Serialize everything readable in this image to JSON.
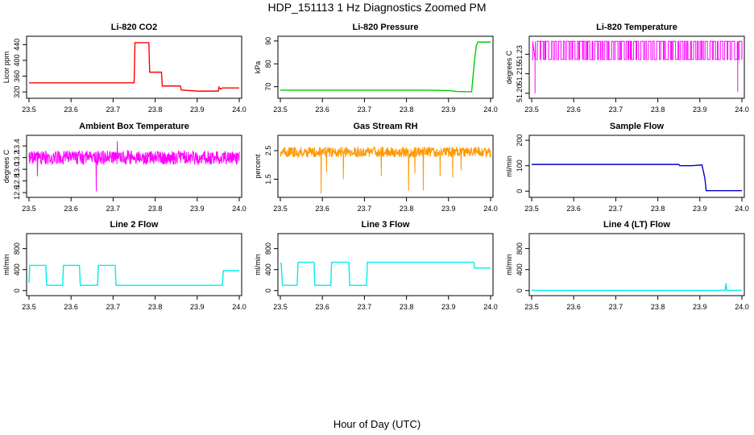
{
  "figure": {
    "title": "HDP_151113  1 Hz Diagnostics Zoomed PM",
    "xlabel": "Hour of Day (UTC)"
  },
  "chart_data": [
    {
      "id": "co2",
      "type": "line",
      "title": "Li-820 CO2",
      "ylabel": "Licor ppm",
      "color": "#ff0000",
      "xlim": [
        23.5,
        24.0
      ],
      "ylim": [
        310,
        455
      ],
      "xticks": [
        "23.5",
        "23.6",
        "23.7",
        "23.8",
        "23.9",
        "24.0"
      ],
      "yticks": [
        {
          "v": 320,
          "label": "320"
        },
        {
          "v": 360,
          "label": "360"
        },
        {
          "v": 400,
          "label": "400"
        },
        {
          "v": 440,
          "label": "440"
        }
      ],
      "series": [
        {
          "name": "CO2",
          "x": [
            23.5,
            23.75,
            23.752,
            23.785,
            23.787,
            23.815,
            23.817,
            23.86,
            23.862,
            23.9,
            23.95,
            23.952,
            23.955,
            23.96,
            23.962,
            24.0
          ],
          "y": [
            343,
            343,
            445,
            445,
            370,
            370,
            335,
            335,
            325,
            322,
            322,
            332,
            327,
            330,
            330,
            330
          ]
        }
      ]
    },
    {
      "id": "pressure",
      "type": "line",
      "title": "Li-820 Pressure",
      "ylabel": "kPa",
      "color": "#00cc00",
      "xlim": [
        23.5,
        24.0
      ],
      "ylim": [
        66,
        91
      ],
      "xticks": [
        "23.5",
        "23.6",
        "23.7",
        "23.8",
        "23.9",
        "24.0"
      ],
      "yticks": [
        {
          "v": 70,
          "label": "70"
        },
        {
          "v": 80,
          "label": "80"
        },
        {
          "v": 90,
          "label": "90"
        }
      ],
      "series": [
        {
          "name": "Pressure",
          "x": [
            23.5,
            23.85,
            23.9,
            23.92,
            23.955,
            23.958,
            23.962,
            23.966,
            23.97,
            23.972,
            24.0
          ],
          "y": [
            68.5,
            68.5,
            68.3,
            67.9,
            67.8,
            74,
            82,
            88,
            89.5,
            89.5,
            89.5
          ]
        }
      ]
    },
    {
      "id": "licor_temp",
      "type": "line",
      "title": "Li-820 Temperature",
      "ylabel": "degrees C",
      "color": "#ff00ff",
      "xlim": [
        23.5,
        24.0
      ],
      "ylim": [
        51.198,
        51.242
      ],
      "xticks": [
        "23.5",
        "23.6",
        "23.7",
        "23.8",
        "23.9",
        "24.0"
      ],
      "yticks": [
        {
          "v": 51.2,
          "label": "51.20"
        },
        {
          "v": 51.215,
          "label": "51.215"
        },
        {
          "v": 51.23,
          "label": "51.23"
        }
      ],
      "series": [
        {
          "name": "Temperature",
          "pattern": "toggle",
          "low": 51.226,
          "high": 51.24,
          "spikes": [
            {
              "x": 23.508,
              "y": 51.2
            },
            {
              "x": 23.99,
              "y": 51.201
            }
          ]
        }
      ]
    },
    {
      "id": "box_temp",
      "type": "line",
      "title": "Ambient Box Temperature",
      "ylabel": "degrees C",
      "color": "#ff00ff",
      "xlim": [
        23.5,
        24.0
      ],
      "ylim": [
        12.56,
        13.54
      ],
      "xticks": [
        "23.5",
        "23.6",
        "23.7",
        "23.8",
        "23.9",
        "24.0"
      ],
      "yticks": [
        {
          "v": 12.6,
          "label": "12.6"
        },
        {
          "v": 12.8,
          "label": "12.8"
        },
        {
          "v": 13.0,
          "label": "13.0"
        },
        {
          "v": 13.2,
          "label": "13.2"
        },
        {
          "v": 13.4,
          "label": "13.4"
        }
      ],
      "series": [
        {
          "name": "Box Temperature",
          "pattern": "noise",
          "mean": 13.2,
          "amp": 0.12,
          "spikes": [
            {
              "x": 23.66,
              "y": 12.62
            },
            {
              "x": 23.71,
              "y": 13.48
            },
            {
              "x": 23.52,
              "y": 12.88
            }
          ]
        }
      ]
    },
    {
      "id": "rh",
      "type": "line",
      "title": "Gas Stream RH",
      "ylabel": "percent",
      "color": "#ff9900",
      "xlim": [
        23.5,
        24.0
      ],
      "ylim": [
        0.95,
        2.95
      ],
      "xticks": [
        "23.5",
        "23.6",
        "23.7",
        "23.8",
        "23.9",
        "24.0"
      ],
      "yticks": [
        {
          "v": 1.5,
          "label": "1.5"
        },
        {
          "v": 2.5,
          "label": "2.5"
        }
      ],
      "series": [
        {
          "name": "RH",
          "pattern": "noise",
          "mean": 2.45,
          "amp": 0.18,
          "spikes": [
            {
              "x": 23.597,
              "y": 1.0
            },
            {
              "x": 23.61,
              "y": 1.75
            },
            {
              "x": 23.65,
              "y": 1.5
            },
            {
              "x": 23.74,
              "y": 1.6
            },
            {
              "x": 23.805,
              "y": 1.1
            },
            {
              "x": 23.82,
              "y": 1.7
            },
            {
              "x": 23.84,
              "y": 1.1
            },
            {
              "x": 23.88,
              "y": 1.6
            },
            {
              "x": 23.91,
              "y": 1.55
            },
            {
              "x": 23.93,
              "y": 1.8
            }
          ]
        }
      ]
    },
    {
      "id": "sample_flow",
      "type": "line",
      "title": "Sample Flow",
      "ylabel": "ml/min",
      "color": "#0000cc",
      "xlim": [
        23.5,
        24.0
      ],
      "ylim": [
        -15,
        210
      ],
      "xticks": [
        "23.5",
        "23.6",
        "23.7",
        "23.8",
        "23.9",
        "24.0"
      ],
      "yticks": [
        {
          "v": 0,
          "label": "0"
        },
        {
          "v": 100,
          "label": "100"
        },
        {
          "v": 200,
          "label": "200"
        }
      ],
      "series": [
        {
          "name": "Sample Flow",
          "x": [
            23.5,
            23.85,
            23.852,
            23.88,
            23.905,
            23.912,
            23.915,
            24.0
          ],
          "y": [
            105,
            105,
            100,
            100,
            103,
            50,
            2,
            2
          ]
        }
      ]
    },
    {
      "id": "line2",
      "type": "line",
      "title": "Line 2 Flow",
      "ylabel": "ml/min",
      "color": "#00eeee",
      "xlim": [
        23.5,
        24.0
      ],
      "ylim": [
        -50,
        1040
      ],
      "xticks": [
        "23.5",
        "23.6",
        "23.7",
        "23.8",
        "23.9",
        "24.0"
      ],
      "yticks": [
        {
          "v": 0,
          "label": "0"
        },
        {
          "v": 400,
          "label": "400"
        },
        {
          "v": 800,
          "label": "800"
        }
      ],
      "series": [
        {
          "name": "Line 2",
          "x": [
            23.5,
            23.502,
            23.54,
            23.542,
            23.58,
            23.582,
            23.62,
            23.622,
            23.663,
            23.665,
            23.705,
            23.707,
            23.96,
            23.962,
            24.0
          ],
          "y": [
            150,
            480,
            480,
            100,
            100,
            480,
            480,
            100,
            100,
            480,
            480,
            100,
            100,
            380,
            380
          ]
        }
      ]
    },
    {
      "id": "line3",
      "type": "line",
      "title": "Line 3 Flow",
      "ylabel": "ml/min",
      "color": "#00eeee",
      "xlim": [
        23.5,
        24.0
      ],
      "ylim": [
        -50,
        1040
      ],
      "xticks": [
        "23.5",
        "23.6",
        "23.7",
        "23.8",
        "23.9",
        "24.0"
      ],
      "yticks": [
        {
          "v": 0,
          "label": "0"
        },
        {
          "v": 400,
          "label": "400"
        },
        {
          "v": 800,
          "label": "800"
        }
      ],
      "series": [
        {
          "name": "Line 3",
          "x": [
            23.5,
            23.502,
            23.505,
            23.54,
            23.542,
            23.58,
            23.582,
            23.62,
            23.622,
            23.663,
            23.665,
            23.705,
            23.707,
            23.96,
            23.962,
            24.0
          ],
          "y": [
            520,
            520,
            100,
            100,
            540,
            540,
            100,
            100,
            540,
            540,
            100,
            100,
            540,
            540,
            430,
            430
          ]
        }
      ]
    },
    {
      "id": "line4",
      "type": "line",
      "title": "Line 4 (LT) Flow",
      "ylabel": "ml/min",
      "color": "#00eeee",
      "xlim": [
        23.5,
        24.0
      ],
      "ylim": [
        -50,
        1040
      ],
      "xticks": [
        "23.5",
        "23.6",
        "23.7",
        "23.8",
        "23.9",
        "24.0"
      ],
      "yticks": [
        {
          "v": 0,
          "label": "0"
        },
        {
          "v": 400,
          "label": "400"
        },
        {
          "v": 800,
          "label": "800"
        }
      ],
      "series": [
        {
          "name": "Line 4",
          "x": [
            23.5,
            23.96,
            23.962,
            23.964,
            23.966,
            24.0
          ],
          "y": [
            5,
            5,
            140,
            5,
            5,
            5
          ]
        }
      ]
    }
  ]
}
